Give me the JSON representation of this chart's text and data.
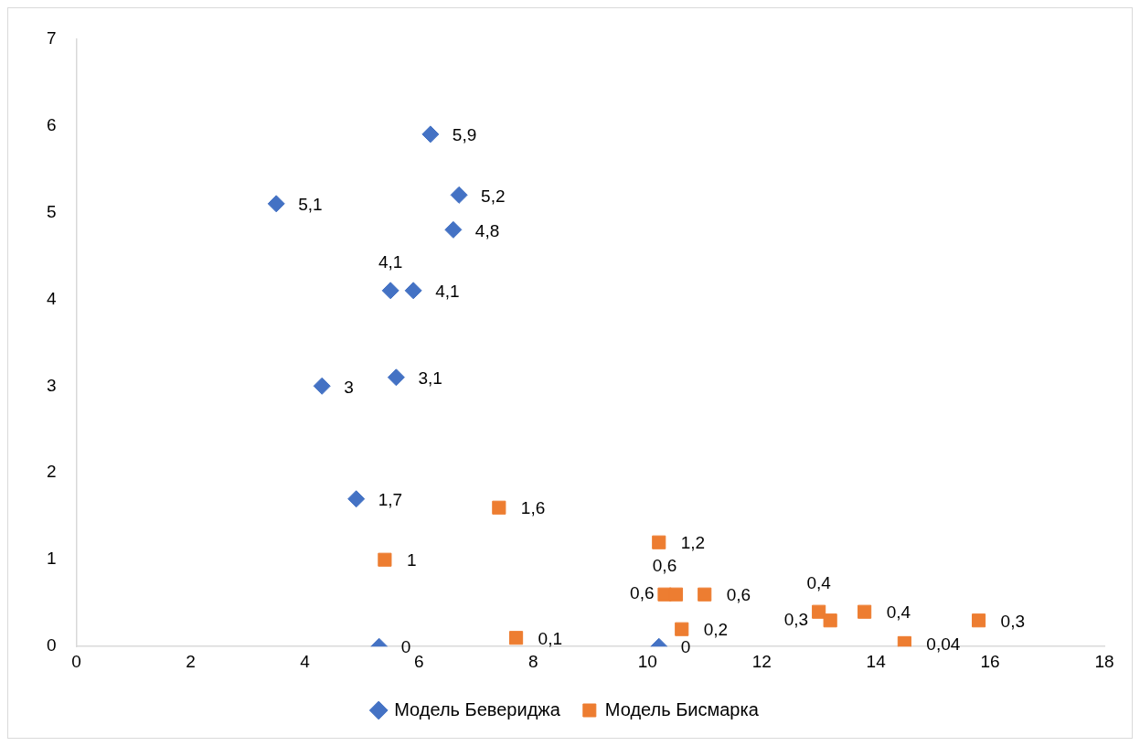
{
  "chart_data": {
    "type": "scatter",
    "xlim": [
      0,
      18
    ],
    "xticks": [
      0,
      2,
      4,
      6,
      8,
      10,
      12,
      14,
      16,
      18
    ],
    "ylim": [
      0,
      7
    ],
    "yticks": [
      0,
      1,
      2,
      3,
      4,
      5,
      6,
      7
    ],
    "grid": false,
    "legend": "bottom",
    "series": [
      {
        "name": "Модель Бевериджа",
        "color": "#4472c4",
        "marker": "diamond",
        "x": [
          6.2,
          3.5,
          6.7,
          6.6,
          5.5,
          5.9,
          4.3,
          5.6,
          4.9,
          5.3,
          10.2
        ],
        "values": [
          5.9,
          5.1,
          5.2,
          4.8,
          4.1,
          4.1,
          3,
          3.1,
          1.7,
          0,
          0
        ],
        "value_labels": [
          "5,9",
          "5,1",
          "5,2",
          "4,8",
          "4,1",
          "4,1",
          "3",
          "3,1",
          "1,7",
          "0",
          "0"
        ]
      },
      {
        "name": "Модель Бисмарка",
        "color": "#ed7d31",
        "marker": "square",
        "x": [
          7.4,
          5.4,
          10.2,
          10.3,
          10.5,
          11,
          10.6,
          7.7,
          13,
          13.2,
          13.8,
          14.5,
          15.8
        ],
        "values": [
          1.6,
          1,
          1.2,
          0.6,
          0.6,
          0.6,
          0.2,
          0.1,
          0.4,
          0.3,
          0.4,
          0.04,
          0.3
        ],
        "value_labels": [
          "1,6",
          "1",
          "1,2",
          "0,6",
          "0,6",
          "0,6",
          "0,2",
          "0,1",
          "0,4",
          "0,3",
          "0,4",
          "0,04",
          "0,3"
        ]
      }
    ]
  }
}
